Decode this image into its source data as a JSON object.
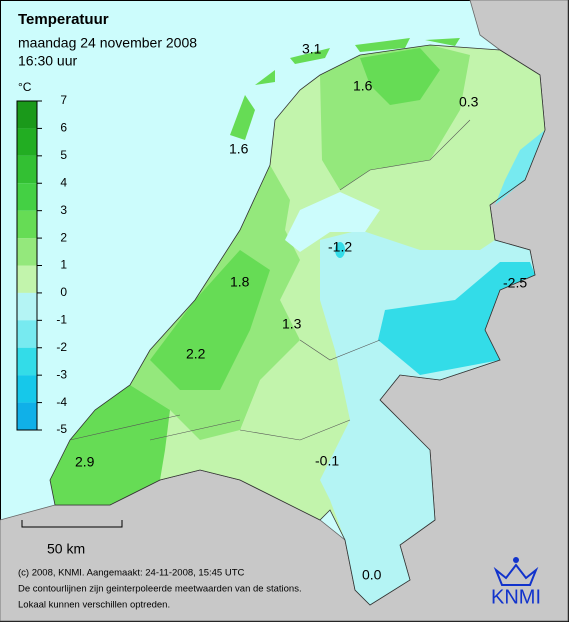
{
  "header": {
    "title": "Temperatuur",
    "date": "maandag 24 november 2008",
    "time": "16:30 uur"
  },
  "legend": {
    "unit": "°C",
    "ticks": [
      7,
      6,
      5,
      4,
      3,
      2,
      1,
      0,
      -1,
      -2,
      -3,
      -4,
      -5
    ],
    "colors": [
      "#1a991a",
      "#22ad22",
      "#33c033",
      "#44d044",
      "#66dc55",
      "#94e87c",
      "#c2f4ac",
      "#b4f4f4",
      "#77eaf0",
      "#33dce8",
      "#16c8ea",
      "#10b0e8"
    ]
  },
  "contour_labels": [
    "3.1",
    "1.6",
    "0.3",
    "1.6",
    "-1.2",
    "-2.5",
    "1.8",
    "1.3",
    "2.2",
    "2.9",
    "-0.1",
    "0.0"
  ],
  "scale_bar": "50 km",
  "footer": [
    "(c) 2008, KNMI. Aangemaakt: 24-11-2008, 15:45 UTC",
    "De contourlijnen zijn geinterpoleerde meetwaarden van de stations.",
    "Lokaal kunnen verschillen optreden."
  ],
  "logo": "KNMI"
}
